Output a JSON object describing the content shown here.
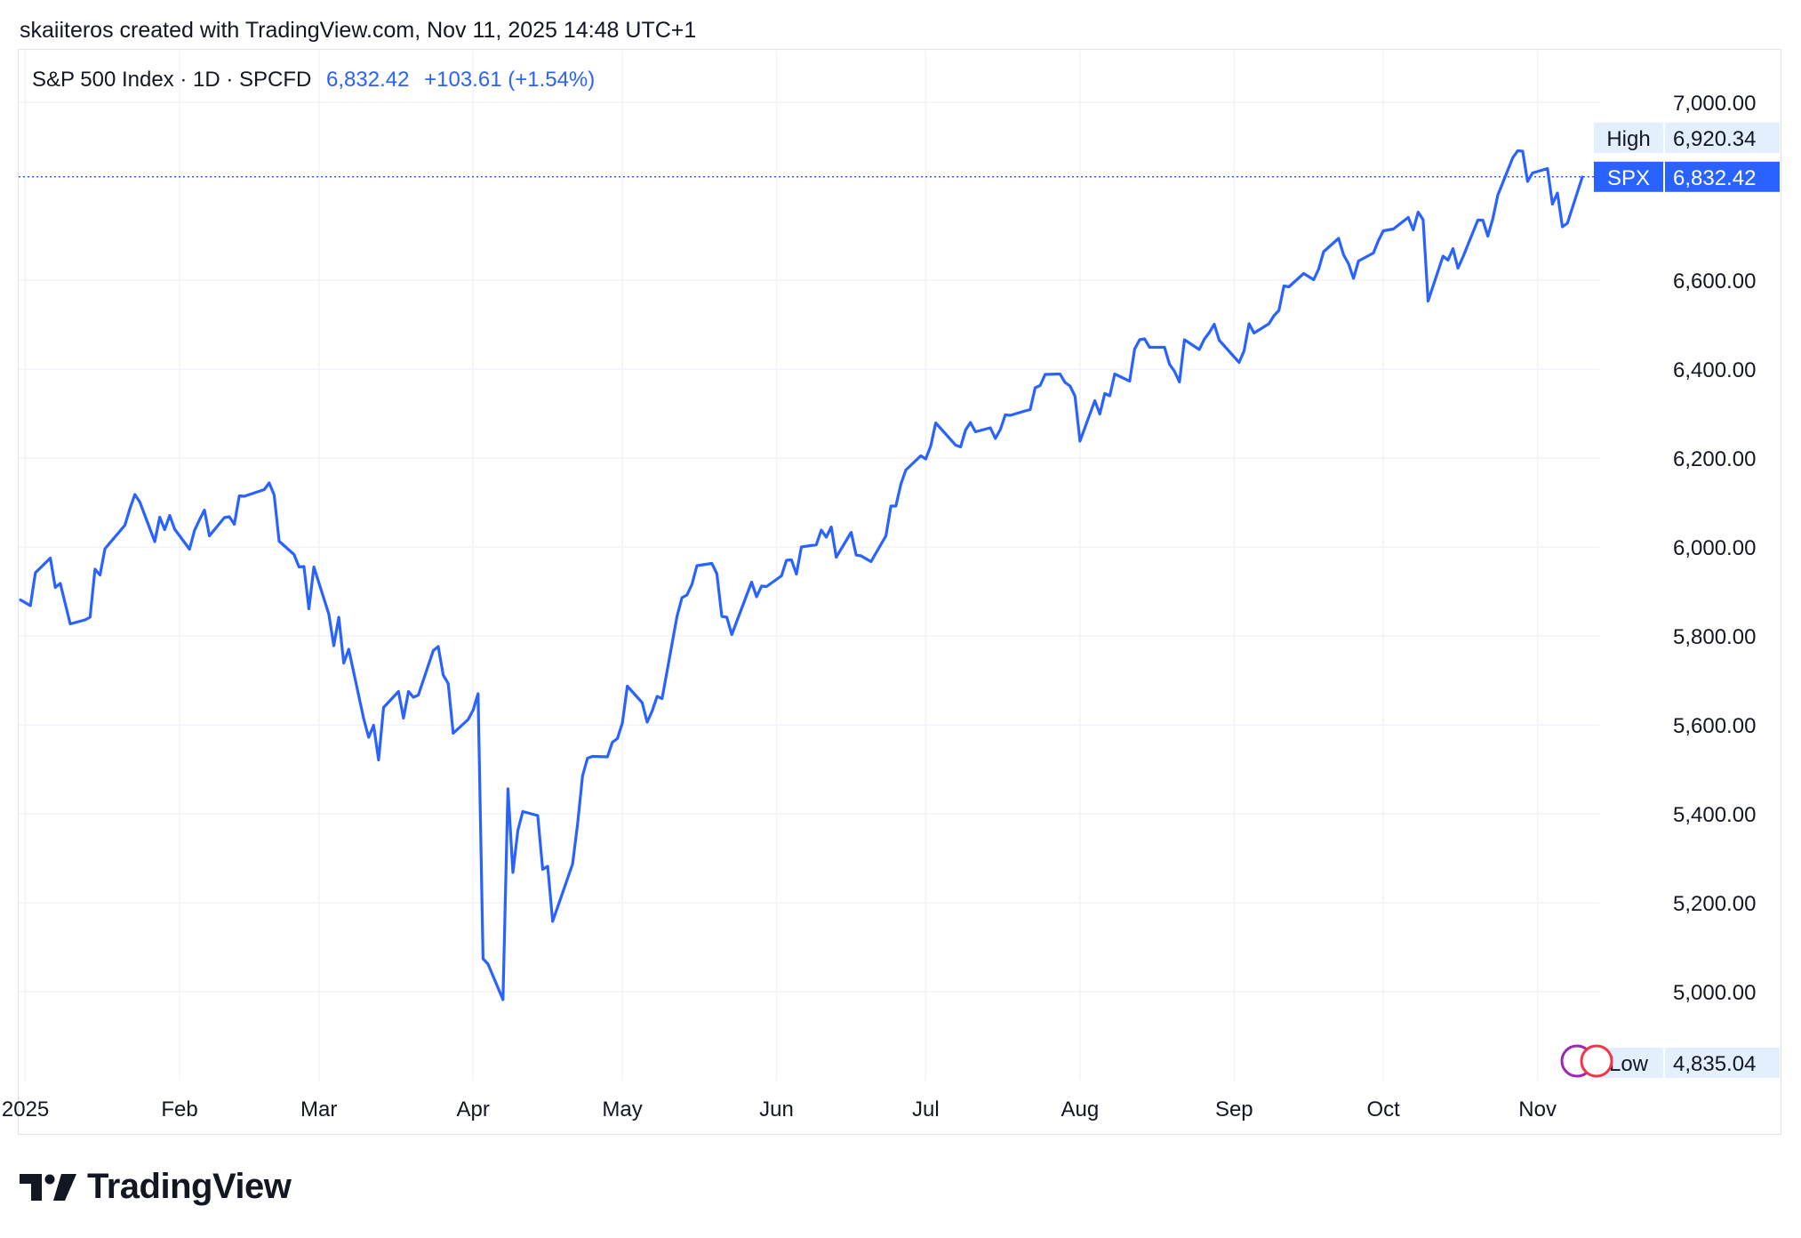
{
  "attribution": "skaiiteros created with TradingView.com, Nov 11, 2025 14:48 UTC+1",
  "header": {
    "title": "S&P 500 Index · 1D · SPCFD",
    "price": "6,832.42",
    "change": "+103.61 (+1.54%)"
  },
  "labels": {
    "high_tag": "High",
    "high_value": "6,920.34",
    "last_tag": "SPX",
    "last_value": "6,832.42",
    "low_tag": "Low",
    "low_value": "4,835.04"
  },
  "logo_text": "TradingView",
  "colors": {
    "line": "#2962ff",
    "grid": "#f0f3fa",
    "text": "#131722",
    "tag_bg": "#e3effd",
    "last_bg": "#2962ff"
  },
  "chart_data": {
    "type": "line",
    "series": [
      {
        "name": "SPX",
        "dates": [
          "2024-12-31",
          "2025-01-02",
          "2025-01-03",
          "2025-01-06",
          "2025-01-07",
          "2025-01-08",
          "2025-01-10",
          "2025-01-13",
          "2025-01-14",
          "2025-01-15",
          "2025-01-16",
          "2025-01-17",
          "2025-01-21",
          "2025-01-22",
          "2025-01-23",
          "2025-01-24",
          "2025-01-27",
          "2025-01-28",
          "2025-01-29",
          "2025-01-30",
          "2025-01-31",
          "2025-02-03",
          "2025-02-04",
          "2025-02-05",
          "2025-02-06",
          "2025-02-07",
          "2025-02-10",
          "2025-02-11",
          "2025-02-12",
          "2025-02-13",
          "2025-02-14",
          "2025-02-18",
          "2025-02-19",
          "2025-02-20",
          "2025-02-21",
          "2025-02-24",
          "2025-02-25",
          "2025-02-26",
          "2025-02-27",
          "2025-02-28",
          "2025-03-03",
          "2025-03-04",
          "2025-03-05",
          "2025-03-06",
          "2025-03-07",
          "2025-03-10",
          "2025-03-11",
          "2025-03-12",
          "2025-03-13",
          "2025-03-14",
          "2025-03-17",
          "2025-03-18",
          "2025-03-19",
          "2025-03-20",
          "2025-03-21",
          "2025-03-24",
          "2025-03-25",
          "2025-03-26",
          "2025-03-27",
          "2025-03-28",
          "2025-03-31",
          "2025-04-01",
          "2025-04-02",
          "2025-04-03",
          "2025-04-04",
          "2025-04-07",
          "2025-04-08",
          "2025-04-09",
          "2025-04-10",
          "2025-04-11",
          "2025-04-14",
          "2025-04-15",
          "2025-04-16",
          "2025-04-17",
          "2025-04-21",
          "2025-04-22",
          "2025-04-23",
          "2025-04-24",
          "2025-04-25",
          "2025-04-28",
          "2025-04-29",
          "2025-04-30",
          "2025-05-01",
          "2025-05-02",
          "2025-05-05",
          "2025-05-06",
          "2025-05-07",
          "2025-05-08",
          "2025-05-09",
          "2025-05-12",
          "2025-05-13",
          "2025-05-14",
          "2025-05-15",
          "2025-05-16",
          "2025-05-19",
          "2025-05-20",
          "2025-05-21",
          "2025-05-22",
          "2025-05-23",
          "2025-05-27",
          "2025-05-28",
          "2025-05-29",
          "2025-05-30",
          "2025-06-02",
          "2025-06-03",
          "2025-06-04",
          "2025-06-05",
          "2025-06-06",
          "2025-06-09",
          "2025-06-10",
          "2025-06-11",
          "2025-06-12",
          "2025-06-13",
          "2025-06-16",
          "2025-06-17",
          "2025-06-18",
          "2025-06-20",
          "2025-06-23",
          "2025-06-24",
          "2025-06-25",
          "2025-06-26",
          "2025-06-27",
          "2025-06-30",
          "2025-07-01",
          "2025-07-02",
          "2025-07-03",
          "2025-07-07",
          "2025-07-08",
          "2025-07-09",
          "2025-07-10",
          "2025-07-11",
          "2025-07-14",
          "2025-07-15",
          "2025-07-16",
          "2025-07-17",
          "2025-07-18",
          "2025-07-21",
          "2025-07-22",
          "2025-07-23",
          "2025-07-24",
          "2025-07-25",
          "2025-07-28",
          "2025-07-29",
          "2025-07-30",
          "2025-07-31",
          "2025-08-01",
          "2025-08-04",
          "2025-08-05",
          "2025-08-06",
          "2025-08-07",
          "2025-08-08",
          "2025-08-11",
          "2025-08-12",
          "2025-08-13",
          "2025-08-14",
          "2025-08-15",
          "2025-08-18",
          "2025-08-19",
          "2025-08-20",
          "2025-08-21",
          "2025-08-22",
          "2025-08-25",
          "2025-08-26",
          "2025-08-27",
          "2025-08-28",
          "2025-08-29",
          "2025-09-02",
          "2025-09-03",
          "2025-09-04",
          "2025-09-05",
          "2025-09-08",
          "2025-09-09",
          "2025-09-10",
          "2025-09-11",
          "2025-09-12",
          "2025-09-15",
          "2025-09-16",
          "2025-09-17",
          "2025-09-18",
          "2025-09-19",
          "2025-09-22",
          "2025-09-23",
          "2025-09-24",
          "2025-09-25",
          "2025-09-26",
          "2025-09-29",
          "2025-09-30",
          "2025-10-01",
          "2025-10-02",
          "2025-10-03",
          "2025-10-06",
          "2025-10-07",
          "2025-10-08",
          "2025-10-09",
          "2025-10-10",
          "2025-10-13",
          "2025-10-14",
          "2025-10-15",
          "2025-10-16",
          "2025-10-17",
          "2025-10-20",
          "2025-10-21",
          "2025-10-22",
          "2025-10-23",
          "2025-10-24",
          "2025-10-27",
          "2025-10-28",
          "2025-10-29",
          "2025-10-30",
          "2025-10-31",
          "2025-11-03",
          "2025-11-04",
          "2025-11-05",
          "2025-11-06",
          "2025-11-07",
          "2025-11-10"
        ],
        "values": [
          5881,
          5868,
          5942,
          5975,
          5909,
          5918,
          5827,
          5836,
          5842,
          5950,
          5937,
          5996,
          6049,
          6086,
          6118,
          6101,
          6012,
          6067,
          6039,
          6071,
          6040,
          5995,
          6037,
          6061,
          6083,
          6025,
          6066,
          6068,
          6051,
          6115,
          6114,
          6129,
          6144,
          6117,
          6013,
          5983,
          5955,
          5956,
          5861,
          5955,
          5849,
          5778,
          5842,
          5739,
          5770,
          5614,
          5572,
          5599,
          5521,
          5639,
          5675,
          5615,
          5675,
          5662,
          5667,
          5767,
          5776,
          5712,
          5693,
          5581,
          5612,
          5633,
          5670,
          5074,
          5062,
          4982,
          5456,
          5268,
          5363,
          5405,
          5396,
          5275,
          5282,
          5158,
          5287,
          5376,
          5485,
          5525,
          5529,
          5528,
          5561,
          5569,
          5604,
          5687,
          5650,
          5606,
          5631,
          5664,
          5659,
          5844,
          5886,
          5892,
          5916,
          5958,
          5963,
          5940,
          5844,
          5842,
          5803,
          5921,
          5888,
          5912,
          5911,
          5935,
          5970,
          5971,
          5939,
          6000,
          6005,
          6038,
          6022,
          6045,
          5977,
          6033,
          5982,
          5980,
          5967,
          6025,
          6092,
          6092,
          6141,
          6173,
          6205,
          6198,
          6227,
          6279,
          6229,
          6225,
          6263,
          6280,
          6259,
          6268,
          6244,
          6264,
          6297,
          6296,
          6306,
          6309,
          6358,
          6363,
          6388,
          6389,
          6370,
          6362,
          6339,
          6238,
          6329,
          6299,
          6345,
          6340,
          6389,
          6373,
          6445,
          6466,
          6468,
          6449,
          6449,
          6411,
          6395,
          6371,
          6466,
          6444,
          6467,
          6482,
          6501,
          6465,
          6415,
          6441,
          6502,
          6481,
          6502,
          6520,
          6532,
          6587,
          6585,
          6615,
          6608,
          6601,
          6625,
          6664,
          6694,
          6657,
          6637,
          6604,
          6643,
          6661,
          6689,
          6711,
          6713,
          6715,
          6741,
          6713,
          6753,
          6736,
          6553,
          6654,
          6645,
          6671,
          6627,
          6652,
          6735,
          6735,
          6699,
          6738,
          6791,
          6875,
          6891,
          6890,
          6822,
          6841,
          6851,
          6771,
          6796,
          6720,
          6728,
          6832
        ]
      }
    ],
    "x_ticks": [
      "2025",
      "Feb",
      "Mar",
      "Apr",
      "May",
      "Jun",
      "Jul",
      "Aug",
      "Sep",
      "Oct",
      "Nov"
    ],
    "y_ticks": [
      "7,000.00",
      "6,600.00",
      "6,400.00",
      "6,200.00",
      "6,000.00",
      "5,800.00",
      "5,600.00",
      "5,400.00",
      "5,200.00",
      "5,000.00"
    ],
    "ylim": [
      4800,
      7050
    ],
    "last": 6832.42,
    "high": 6920.34,
    "low": 4835.04,
    "grid": true
  }
}
